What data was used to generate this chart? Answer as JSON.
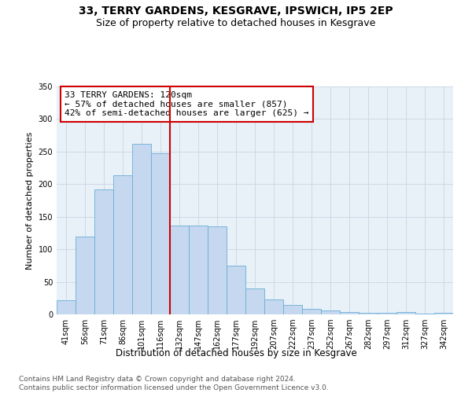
{
  "title": "33, TERRY GARDENS, KESGRAVE, IPSWICH, IP5 2EP",
  "subtitle": "Size of property relative to detached houses in Kesgrave",
  "xlabel": "Distribution of detached houses by size in Kesgrave",
  "ylabel": "Number of detached properties",
  "categories": [
    "41sqm",
    "56sqm",
    "71sqm",
    "86sqm",
    "101sqm",
    "116sqm",
    "132sqm",
    "147sqm",
    "162sqm",
    "177sqm",
    "192sqm",
    "207sqm",
    "222sqm",
    "237sqm",
    "252sqm",
    "267sqm",
    "282sqm",
    "297sqm",
    "312sqm",
    "327sqm",
    "342sqm"
  ],
  "values": [
    22,
    120,
    192,
    214,
    262,
    247,
    136,
    136,
    135,
    75,
    40,
    23,
    15,
    8,
    6,
    4,
    2,
    3,
    4,
    1,
    2
  ],
  "bar_color": "#c5d8ef",
  "bar_edge_color": "#6baed6",
  "annotation_text": "33 TERRY GARDENS: 120sqm\n← 57% of detached houses are smaller (857)\n42% of semi-detached houses are larger (625) →",
  "annotation_box_color": "#ffffff",
  "annotation_box_edge": "#cc0000",
  "vline_color": "#cc0000",
  "ylim": [
    0,
    350
  ],
  "yticks": [
    0,
    50,
    100,
    150,
    200,
    250,
    300,
    350
  ],
  "grid_color": "#d0d8e4",
  "bg_color": "#e8f0f8",
  "footnote": "Contains HM Land Registry data © Crown copyright and database right 2024.\nContains public sector information licensed under the Open Government Licence v3.0.",
  "title_fontsize": 10,
  "subtitle_fontsize": 9,
  "xlabel_fontsize": 8.5,
  "ylabel_fontsize": 8,
  "tick_fontsize": 7,
  "annotation_fontsize": 8,
  "footnote_fontsize": 6.5
}
